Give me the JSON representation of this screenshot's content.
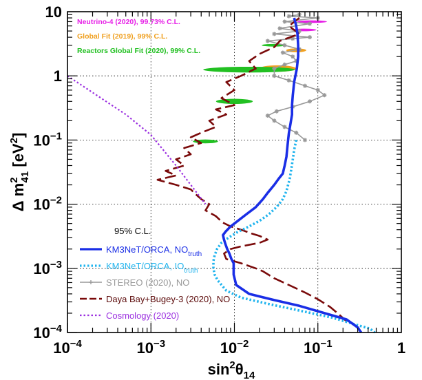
{
  "chart_data": {
    "type": "line",
    "xscale": "log",
    "yscale": "log",
    "xlim": [
      0.0001,
      1
    ],
    "ylim": [
      0.0001,
      10
    ],
    "grid": true,
    "xlabel": {
      "base": "sin",
      "sup": "2",
      "sym": "θ",
      "sub": "14"
    },
    "ylabel": {
      "base": "Δ m",
      "sup": "2",
      "sub": "41",
      "unit": " [eV",
      "unit_sup": "2",
      "close": "]"
    },
    "x_ticks": [
      {
        "base": "10",
        "exp": "−4"
      },
      {
        "base": "10",
        "exp": "−3"
      },
      {
        "base": "10",
        "exp": "−2"
      },
      {
        "base": "10",
        "exp": "−1"
      },
      {
        "base": "1",
        "exp": ""
      }
    ],
    "y_ticks": [
      {
        "base": "10",
        "exp": "−4"
      },
      {
        "base": "10",
        "exp": "−3"
      },
      {
        "base": "10",
        "exp": "−2"
      },
      {
        "base": "10",
        "exp": "−1"
      },
      {
        "base": "1",
        "exp": ""
      },
      {
        "base": "10",
        "exp": ""
      }
    ],
    "legend_title": "95% C.L.",
    "legend_position": "bottom-left",
    "annotations": [
      {
        "text": "Neutrino-4 (2020), 99.73% C.L.",
        "color": "#e61ee6"
      },
      {
        "text": "Global Fit (2019), 99% C.L.",
        "color": "#f0a020"
      },
      {
        "text": "Reactors Global Fit (2020), 99% C.L.",
        "color": "#22c022"
      }
    ],
    "series": [
      {
        "name": "KM3NeT/ORCA, NO",
        "name_sub": "truth",
        "color": "#1a2ee6",
        "style": "solid",
        "width": 3.6,
        "x": [
          0.052,
          0.055,
          0.057,
          0.058,
          0.058,
          0.056,
          0.052,
          0.05,
          0.049,
          0.049,
          0.047,
          0.045,
          0.044,
          0.043,
          0.042,
          0.04,
          0.038,
          0.034,
          0.03,
          0.025,
          0.022,
          0.018,
          0.014,
          0.011,
          0.009,
          0.0078,
          0.0073,
          0.0075,
          0.0078,
          0.0082,
          0.0087,
          0.0092,
          0.0098,
          0.0098,
          0.0105,
          0.015,
          0.03,
          0.06,
          0.12,
          0.22,
          0.3,
          0.33
        ],
        "y": [
          8.0,
          6.0,
          4.5,
          3.0,
          2.0,
          1.3,
          0.8,
          0.5,
          0.35,
          0.25,
          0.18,
          0.13,
          0.1,
          0.075,
          0.055,
          0.04,
          0.03,
          0.025,
          0.02,
          0.015,
          0.012,
          0.009,
          0.007,
          0.0055,
          0.0045,
          0.0037,
          0.0033,
          0.0028,
          0.0024,
          0.002,
          0.0017,
          0.0014,
          0.0012,
          0.0008,
          0.00055,
          0.0004,
          0.00032,
          0.00026,
          0.0002,
          0.00016,
          0.00012,
          0.0001
        ]
      },
      {
        "name": "KM3NeT/ORCA, IO",
        "name_sub": "truth",
        "color": "#20b4ee",
        "style": "dotted",
        "width": 3.6,
        "x": [
          0.055,
          0.052,
          0.05,
          0.048,
          0.046,
          0.044,
          0.042,
          0.038,
          0.032,
          0.026,
          0.02,
          0.015,
          0.011,
          0.0085,
          0.007,
          0.0062,
          0.0058,
          0.0056,
          0.0056,
          0.0058,
          0.0063,
          0.008,
          0.012,
          0.025,
          0.06,
          0.15,
          0.3,
          0.42,
          0.48
        ],
        "y": [
          0.1,
          0.07,
          0.05,
          0.035,
          0.025,
          0.02,
          0.016,
          0.012,
          0.009,
          0.007,
          0.0055,
          0.0045,
          0.0037,
          0.003,
          0.0025,
          0.002,
          0.0016,
          0.0013,
          0.001,
          0.0008,
          0.00065,
          0.00045,
          0.00035,
          0.00028,
          0.00022,
          0.00017,
          0.00013,
          0.000115,
          0.0001
        ]
      },
      {
        "name": "STEREO (2020), NO",
        "color": "#999999",
        "style": "solid-markers",
        "width": 1.6,
        "x": [
          0.06,
          0.045,
          0.1,
          0.04,
          0.08,
          0.035,
          0.06,
          0.03,
          0.08,
          0.05,
          0.025,
          0.04,
          0.06,
          0.038,
          0.05,
          0.055,
          0.04,
          0.03,
          0.03,
          0.045,
          0.07,
          0.1,
          0.12,
          0.08,
          0.05,
          0.032,
          0.025,
          0.03,
          0.04,
          0.055,
          0.07
        ],
        "y": [
          9.0,
          8.5,
          8.0,
          7.0,
          6.5,
          5.5,
          5.0,
          4.5,
          4.0,
          3.8,
          3.5,
          3.0,
          2.6,
          2.3,
          2.0,
          1.7,
          1.5,
          1.3,
          1.0,
          0.85,
          0.7,
          0.6,
          0.5,
          0.4,
          0.33,
          0.28,
          0.24,
          0.2,
          0.16,
          0.13,
          0.1
        ]
      },
      {
        "name": "Daya Bay+Bugey-3 (2020), NO",
        "color": "#7a0a0a",
        "style": "dashed",
        "width": 2.6,
        "x": [
          0.06,
          0.045,
          0.06,
          0.035,
          0.03,
          0.02,
          0.015,
          0.018,
          0.012,
          0.008,
          0.01,
          0.007,
          0.01,
          0.006,
          0.008,
          0.005,
          0.006,
          0.004,
          0.003,
          0.004,
          0.0025,
          0.003,
          0.002,
          0.0025,
          0.0015,
          0.002,
          0.0012,
          0.002,
          0.003,
          0.0035,
          0.004,
          0.005,
          0.0045,
          0.006,
          0.0072,
          0.009,
          0.012,
          0.016,
          0.02,
          0.025,
          0.02,
          0.012,
          0.009,
          0.0075,
          0.008,
          0.012,
          0.018,
          0.022,
          0.03,
          0.045,
          0.07,
          0.1,
          0.14,
          0.18,
          0.22
        ],
        "y": [
          8.0,
          6.0,
          4.5,
          3.5,
          2.8,
          2.2,
          1.7,
          1.3,
          1.0,
          0.8,
          0.6,
          0.45,
          0.35,
          0.3,
          0.25,
          0.2,
          0.16,
          0.13,
          0.11,
          0.09,
          0.075,
          0.06,
          0.05,
          0.04,
          0.033,
          0.028,
          0.024,
          0.02,
          0.017,
          0.014,
          0.012,
          0.01,
          0.008,
          0.0065,
          0.0052,
          0.0045,
          0.004,
          0.0035,
          0.0032,
          0.0028,
          0.0025,
          0.0022,
          0.002,
          0.0017,
          0.0014,
          0.0012,
          0.001,
          0.0009,
          0.0007,
          0.00055,
          0.00042,
          0.00033,
          0.00025,
          0.00019,
          0.00015
        ]
      },
      {
        "name": "Cosmology (2020)",
        "color": "#9b30e0",
        "style": "dotted",
        "width": 2.2,
        "x": [
          0.0001,
          0.0002,
          0.0005,
          0.001,
          0.002,
          0.003,
          0.0045
        ],
        "y": [
          1.0,
          0.55,
          0.25,
          0.12,
          0.04,
          0.02,
          0.01
        ]
      }
    ],
    "regions": [
      {
        "name": "Neutrino-4",
        "color": "#e61ee6",
        "cx": 0.085,
        "cy": 7.0,
        "rx_dec": 0.18,
        "ry_dec": 0.02
      },
      {
        "name": "Neutrino-4",
        "color": "#e61ee6",
        "cx": 0.068,
        "cy": 5.2,
        "rx_dec": 0.15,
        "ry_dec": 0.02
      },
      {
        "name": "Global Fit",
        "color": "#f0a020",
        "cx": 0.033,
        "cy": 1.3,
        "rx_dec": 0.22,
        "ry_dec": 0.05
      },
      {
        "name": "Global Fit",
        "color": "#f0a020",
        "cx": 0.055,
        "cy": 2.5,
        "rx_dec": 0.12,
        "ry_dec": 0.03
      },
      {
        "name": "Reactors Global Fit",
        "color": "#22c022",
        "cx": 0.015,
        "cy": 1.25,
        "rx_dec": 0.55,
        "ry_dec": 0.045
      },
      {
        "name": "Reactors Global Fit",
        "color": "#22c022",
        "cx": 0.01,
        "cy": 0.4,
        "rx_dec": 0.22,
        "ry_dec": 0.04
      },
      {
        "name": "Reactors Global Fit",
        "color": "#22c022",
        "cx": 0.0045,
        "cy": 0.095,
        "rx_dec": 0.15,
        "ry_dec": 0.03
      },
      {
        "name": "Reactors Global Fit",
        "color": "#22c022",
        "cx": 0.03,
        "cy": 3.0,
        "rx_dec": 0.15,
        "ry_dec": 0.02
      }
    ]
  }
}
